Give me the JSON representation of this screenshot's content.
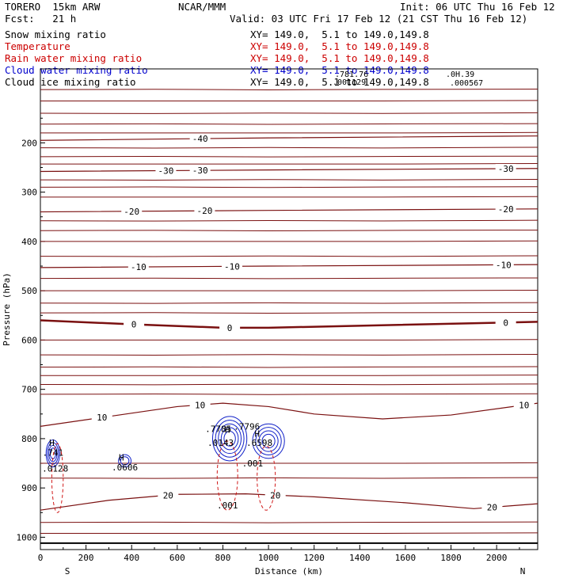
{
  "header": {
    "model": "TORERO  15km ARW",
    "org": "NCAR/MMM",
    "init": "Init: 06 UTC Thu 16 Feb 12",
    "fcst": "Fcst:   21 h",
    "valid": "Valid: 03 UTC Fri 17 Feb 12 (21 CST Thu 16 Feb 12)"
  },
  "legend": [
    {
      "name": "Snow mixing ratio",
      "xy": "XY= 149.0,  5.1 to 149.0,149.8",
      "color": "#000000"
    },
    {
      "name": "Temperature",
      "xy": "XY= 149.0,  5.1 to 149.0,149.8",
      "color": "#cc0000"
    },
    {
      "name": "Rain water mixing ratio",
      "xy": "XY= 149.0,  5.1 to 149.0,149.8",
      "color": "#cc0000"
    },
    {
      "name": "Cloud water mixing ratio",
      "xy": "XY= 149.0,  5.1 to 149.0,149.8",
      "color": "#0000cc"
    },
    {
      "name": "Cloud ice mixing ratio",
      "xy": "XY= 149.0,  5.1 to 149.0,149.8",
      "color": "#000000"
    }
  ],
  "overlap_labels": [
    ".781.76",
    ".001129",
    ".0H.39",
    ".000567"
  ],
  "chart_data": {
    "type": "contour-cross-section",
    "xlabel": "Distance (km)",
    "ylabel": "Pressure (hPa)",
    "xlim": [
      0,
      2180
    ],
    "ylim": [
      1025,
      50
    ],
    "x_ticks": [
      0,
      200,
      400,
      600,
      800,
      1000,
      1200,
      1400,
      1600,
      1800,
      2000
    ],
    "y_ticks": [
      200,
      300,
      400,
      500,
      600,
      700,
      800,
      900,
      1000
    ],
    "x_end_labels": {
      "left": "S",
      "right": "N"
    },
    "surface_pressure": 1012,
    "temperature_isotherms": [
      {
        "label": "-40",
        "points": [
          [
            0,
            195
          ],
          [
            1000,
            190
          ],
          [
            2180,
            186
          ]
        ],
        "label_at": [
          [
            700,
            "-40"
          ]
        ]
      },
      {
        "label": "-30",
        "points": [
          [
            0,
            258
          ],
          [
            1000,
            255
          ],
          [
            2180,
            252
          ]
        ],
        "label_at": [
          [
            550,
            "-30"
          ],
          [
            700,
            "-30"
          ],
          [
            2040,
            "-30"
          ]
        ]
      },
      {
        "label": "-20",
        "points": [
          [
            0,
            340
          ],
          [
            1000,
            337
          ],
          [
            2180,
            334
          ]
        ],
        "label_at": [
          [
            400,
            "-20"
          ],
          [
            720,
            "-20"
          ],
          [
            2040,
            "-20"
          ]
        ]
      },
      {
        "label": "-10",
        "points": [
          [
            0,
            453
          ],
          [
            1000,
            450
          ],
          [
            2180,
            447
          ]
        ],
        "label_at": [
          [
            430,
            "-10"
          ],
          [
            840,
            "-10"
          ],
          [
            2030,
            "-10"
          ]
        ]
      },
      {
        "label": "0",
        "points": [
          [
            0,
            560
          ],
          [
            400,
            568
          ],
          [
            800,
            575
          ],
          [
            1000,
            575
          ],
          [
            1300,
            572
          ],
          [
            2180,
            563
          ]
        ],
        "label_at": [
          [
            410,
            "0"
          ],
          [
            830,
            "0"
          ],
          [
            2040,
            "0"
          ]
        ]
      },
      {
        "label": "10",
        "points": [
          [
            0,
            775
          ],
          [
            300,
            755
          ],
          [
            600,
            735
          ],
          [
            800,
            728
          ],
          [
            1000,
            735
          ],
          [
            1200,
            750
          ],
          [
            1500,
            760
          ],
          [
            1800,
            752
          ],
          [
            2180,
            728
          ]
        ],
        "label_at": [
          [
            270,
            "10"
          ],
          [
            700,
            "10"
          ],
          [
            2120,
            "10"
          ]
        ]
      },
      {
        "label": "20",
        "points": [
          [
            0,
            945
          ],
          [
            300,
            925
          ],
          [
            600,
            913
          ],
          [
            900,
            912
          ],
          [
            1200,
            918
          ],
          [
            1600,
            930
          ],
          [
            1900,
            942
          ],
          [
            2180,
            932
          ]
        ],
        "label_at": [
          [
            560,
            "20"
          ],
          [
            1030,
            "20"
          ],
          [
            1980,
            "20"
          ]
        ]
      }
    ],
    "temperature_other_levels_hpa": [
      92,
      115,
      140,
      162,
      180,
      210,
      228,
      243,
      275,
      290,
      310,
      358,
      378,
      400,
      430,
      475,
      500,
      525,
      545,
      600,
      630,
      655,
      672,
      690,
      710,
      850,
      880,
      970,
      992
    ],
    "cloud_water_labels": [
      {
        "text": "H",
        "x": 50,
        "p": 808
      },
      {
        "text": ".741",
        "x": 55,
        "p": 828
      },
      {
        "text": "H",
        "x": 355,
        "p": 838
      },
      {
        "text": ".0606",
        "x": 370,
        "p": 858
      },
      {
        "text": "H",
        "x": 820,
        "p": 782
      },
      {
        "text": ".7785",
        "x": 780,
        "p": 780
      },
      {
        "text": ".7796",
        "x": 905,
        "p": 775
      },
      {
        "text": "H",
        "x": 950,
        "p": 790
      },
      {
        "text": ".6598",
        "x": 960,
        "p": 808
      },
      {
        "text": ".001",
        "x": 930,
        "p": 850
      }
    ],
    "rain_water_labels": [
      {
        "text": ".0128",
        "x": 65,
        "p": 860
      },
      {
        "text": ".0143",
        "x": 790,
        "p": 808
      },
      {
        "text": ".001",
        "x": 820,
        "p": 935
      }
    ]
  }
}
